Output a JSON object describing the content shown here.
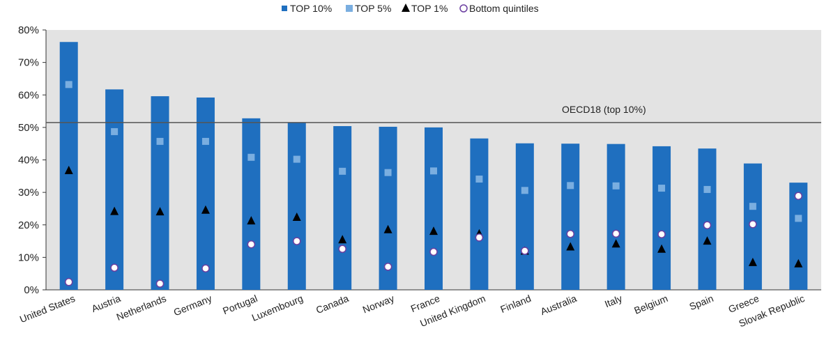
{
  "chart_data": {
    "type": "bar",
    "categories": [
      "United States",
      "Austria",
      "Netherlands",
      "Germany",
      "Portugal",
      "Luxembourg",
      "Canada",
      "Norway",
      "France",
      "United Kingdom",
      "Finland",
      "Australia",
      "Italy",
      "Belgium",
      "Spain",
      "Greece",
      "Slovak Republic"
    ],
    "series": [
      {
        "name": "TOP 10%",
        "marker": "bar",
        "color": "#1f6fbf",
        "values": [
          76.3,
          61.7,
          59.6,
          59.2,
          52.8,
          51.4,
          50.4,
          50.2,
          50.0,
          46.6,
          45.1,
          45.0,
          44.9,
          44.2,
          43.5,
          38.9,
          33.0
        ]
      },
      {
        "name": "TOP 5%",
        "marker": "square",
        "color": "#7aaee0",
        "values": [
          63.2,
          48.7,
          45.7,
          45.7,
          40.8,
          40.2,
          36.5,
          36.1,
          36.6,
          34.1,
          30.6,
          32.1,
          32.0,
          31.3,
          30.9,
          25.7,
          22.0
        ]
      },
      {
        "name": "TOP 1%",
        "marker": "triangle",
        "color": "#000000",
        "values": [
          36.7,
          24.1,
          24.0,
          24.5,
          21.2,
          22.3,
          15.4,
          18.5,
          18.0,
          17.2,
          11.9,
          13.2,
          14.1,
          12.5,
          15.0,
          8.4,
          8.0
        ]
      },
      {
        "name": "Bottom quintiles",
        "marker": "circle",
        "color": "#6b3fa0",
        "values": [
          2.4,
          6.8,
          1.9,
          6.6,
          14.0,
          15.0,
          12.6,
          7.1,
          11.7,
          16.1,
          12.0,
          17.2,
          17.3,
          17.1,
          19.9,
          20.2,
          28.9
        ]
      }
    ],
    "ylim": [
      0,
      80
    ],
    "yticks": [
      0,
      10,
      20,
      30,
      40,
      50,
      60,
      70,
      80
    ],
    "ytick_labels": [
      "0%",
      "10%",
      "20%",
      "30%",
      "40%",
      "50%",
      "60%",
      "70%",
      "80%"
    ],
    "reference_line": {
      "label": "OECD18  (top 10%)",
      "value": 51.5
    },
    "legend_position": "top-center",
    "plot_background": "#e3e3e3",
    "grid": false
  }
}
